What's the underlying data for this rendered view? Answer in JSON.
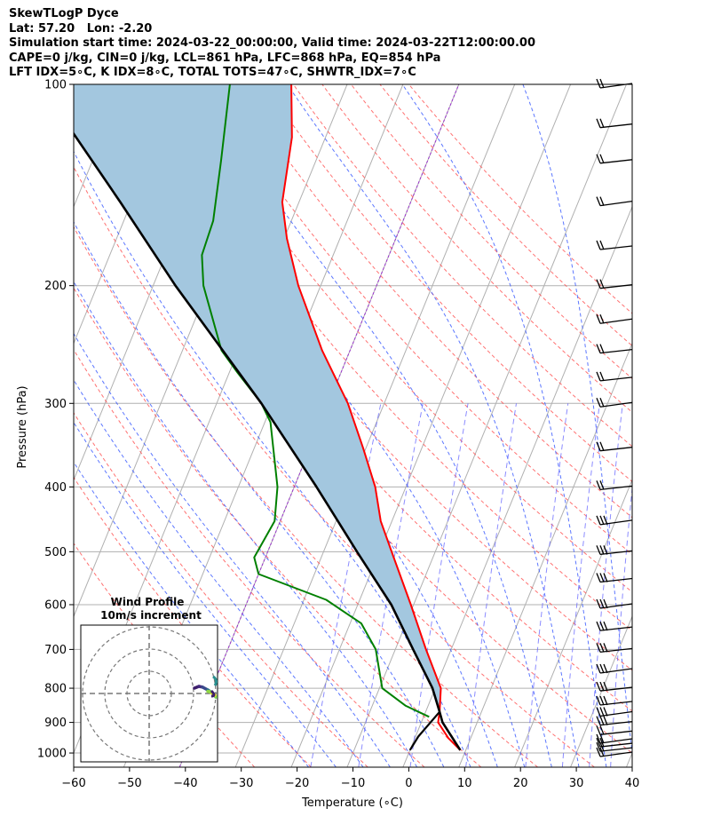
{
  "header": {
    "line1": "SkewTLogP Dyce",
    "line2": "Lat: 57.20   Lon: -2.20",
    "line3": "Simulation start time: 2024-03-22_00:00:00, Valid time: 2024-03-22T12:00:00.00",
    "line4": "CAPE=0 j/kg, CIN=0 j/kg, LCL=861 hPa, LFC=868 hPa, EQ=854 hPa",
    "line5": "LFT IDX=5∘C, K IDX=8∘C, TOTAL TOTS=47∘C, SHWTR_IDX=7∘C"
  },
  "chart_data": {
    "type": "line",
    "subtype": "skew-t log-p",
    "xlabel": "Temperature (∘C)",
    "ylabel": "Pressure (hPa)",
    "xlim": [
      -60,
      40
    ],
    "ylim": [
      1050,
      100
    ],
    "y_scale": "log",
    "x_ticks": [
      -60,
      -50,
      -40,
      -30,
      -20,
      -10,
      0,
      10,
      20,
      30,
      40
    ],
    "x_tick_labels": [
      "−60",
      "−50",
      "−40",
      "−30",
      "−20",
      "−10",
      "0",
      "10",
      "20",
      "30",
      "40"
    ],
    "y_ticks": [
      1000,
      900,
      800,
      700,
      600,
      500,
      400,
      300,
      200,
      100
    ],
    "y_tick_labels": [
      "1000",
      "900",
      "800",
      "700",
      "600",
      "500",
      "400",
      "300",
      "200",
      "100"
    ],
    "grid": true,
    "colors": {
      "temperature": "#ff0000",
      "dewpoint": "#008000",
      "parcel": "#000000",
      "shade": "#a3c7df",
      "dry_adiabat": "#ff4d4d",
      "moist_adiabat": "#3355ff",
      "mixing_ratio": "#6666ff",
      "freezing": "#9933cc"
    },
    "series": [
      {
        "role": "temperature",
        "points": [
          {
            "p": 990,
            "t": 9.0
          },
          {
            "p": 950,
            "t": 6.0
          },
          {
            "p": 900,
            "t": 3.0
          },
          {
            "p": 868,
            "t": 2.5
          },
          {
            "p": 800,
            "t": 1.0
          },
          {
            "p": 700,
            "t": -4.5
          },
          {
            "p": 600,
            "t": -10.5
          },
          {
            "p": 500,
            "t": -17.8
          },
          {
            "p": 450,
            "t": -22.0
          },
          {
            "p": 400,
            "t": -25.5
          },
          {
            "p": 350,
            "t": -30.5
          },
          {
            "p": 300,
            "t": -36.5
          },
          {
            "p": 250,
            "t": -45.0
          },
          {
            "p": 200,
            "t": -54.0
          },
          {
            "p": 170,
            "t": -59.5
          },
          {
            "p": 150,
            "t": -63.0
          },
          {
            "p": 120,
            "t": -66.0
          },
          {
            "p": 100,
            "t": -70.0
          }
        ]
      },
      {
        "role": "dewpoint",
        "points": [
          {
            "p": 883,
            "t": 1.0
          },
          {
            "p": 850,
            "t": -4.0
          },
          {
            "p": 800,
            "t": -9.5
          },
          {
            "p": 700,
            "t": -13.5
          },
          {
            "p": 640,
            "t": -18.0
          },
          {
            "p": 590,
            "t": -26.0
          },
          {
            "p": 540,
            "t": -40.0
          },
          {
            "p": 510,
            "t": -42.0
          },
          {
            "p": 450,
            "t": -41.0
          },
          {
            "p": 400,
            "t": -43.0
          },
          {
            "p": 320,
            "t": -49.0
          },
          {
            "p": 300,
            "t": -52.0
          },
          {
            "p": 270,
            "t": -58.5
          },
          {
            "p": 250,
            "t": -63.0
          },
          {
            "p": 200,
            "t": -71.0
          },
          {
            "p": 180,
            "t": -73.5
          },
          {
            "p": 160,
            "t": -74.0
          },
          {
            "p": 130,
            "t": -77.0
          },
          {
            "p": 100,
            "t": -81.0
          }
        ]
      },
      {
        "role": "parcel",
        "points": [
          {
            "p": 990,
            "t": 9.0
          },
          {
            "p": 900,
            "t": 3.8
          },
          {
            "p": 868,
            "t": 2.5
          },
          {
            "p": 800,
            "t": -0.5
          },
          {
            "p": 700,
            "t": -6.8
          },
          {
            "p": 600,
            "t": -14.0
          },
          {
            "p": 500,
            "t": -24.0
          },
          {
            "p": 400,
            "t": -36.0
          },
          {
            "p": 300,
            "t": -52.0
          },
          {
            "p": 200,
            "t": -76.0
          },
          {
            "p": 150,
            "t": -92.0
          },
          {
            "p": 100,
            "t": -115.0
          }
        ]
      },
      {
        "role": "parcel-lower",
        "points": [
          {
            "p": 990,
            "t": 0.0
          },
          {
            "p": 945,
            "t": 0.5
          },
          {
            "p": 868,
            "t": 2.5
          }
        ]
      }
    ],
    "wind_barb_pressures": [
      1000,
      985,
      970,
      955,
      930,
      900,
      870,
      840,
      800,
      750,
      700,
      650,
      600,
      550,
      500,
      450,
      400,
      350,
      300,
      275,
      250,
      225,
      200,
      175,
      150,
      130,
      115,
      100
    ],
    "inset": {
      "title": "Wind Profile",
      "subtitle": "10m/s increment",
      "rings": [
        10,
        20,
        30
      ]
    }
  }
}
